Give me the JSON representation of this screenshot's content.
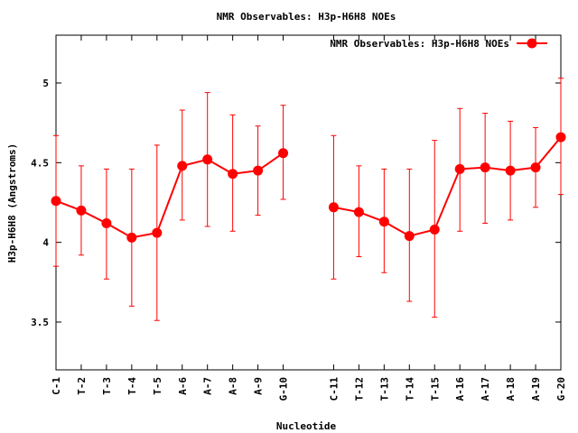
{
  "chart_data": {
    "type": "line",
    "title": "NMR Observables: H3p-H6H8 NOEs",
    "xlabel": "Nucleotide",
    "ylabel": "H3p-H6H8 (Angstroms)",
    "ylim": [
      3.2,
      5.3
    ],
    "yticks": [
      "3.5",
      "4",
      "4.5",
      "5"
    ],
    "legend": {
      "position": "top-right"
    },
    "grid": false,
    "colors": {
      "series": "#ff0000",
      "axis": "#000000"
    },
    "categories": [
      "C-1",
      "T-2",
      "T-3",
      "T-4",
      "T-5",
      "A-6",
      "A-7",
      "A-8",
      "A-9",
      "G-10",
      "C-11",
      "T-12",
      "T-13",
      "T-14",
      "T-15",
      "A-16",
      "A-17",
      "A-18",
      "A-19",
      "G-20"
    ],
    "x": [
      1,
      2,
      3,
      4,
      5,
      6,
      7,
      8,
      9,
      10,
      12,
      13,
      14,
      15,
      16,
      17,
      18,
      19,
      20,
      21
    ],
    "xlim": [
      1,
      21
    ],
    "series": [
      {
        "name": "NMR Observables: H3p-H6H8 NOEs",
        "segments": [
          [
            0,
            9
          ],
          [
            10,
            19
          ]
        ],
        "values": [
          4.26,
          4.2,
          4.12,
          4.03,
          4.06,
          4.48,
          4.52,
          4.43,
          4.45,
          4.56,
          4.22,
          4.19,
          4.13,
          4.04,
          4.08,
          4.46,
          4.47,
          4.45,
          4.47,
          4.66
        ],
        "err_low": [
          3.85,
          3.92,
          3.77,
          3.6,
          3.51,
          4.14,
          4.1,
          4.07,
          4.17,
          4.27,
          3.77,
          3.91,
          3.81,
          3.63,
          3.53,
          4.07,
          4.12,
          4.14,
          4.22,
          4.3
        ],
        "err_high": [
          4.67,
          4.48,
          4.46,
          4.46,
          4.61,
          4.83,
          4.94,
          4.8,
          4.73,
          4.86,
          4.67,
          4.48,
          4.46,
          4.46,
          4.64,
          4.84,
          4.81,
          4.76,
          4.72,
          5.03
        ]
      }
    ]
  }
}
